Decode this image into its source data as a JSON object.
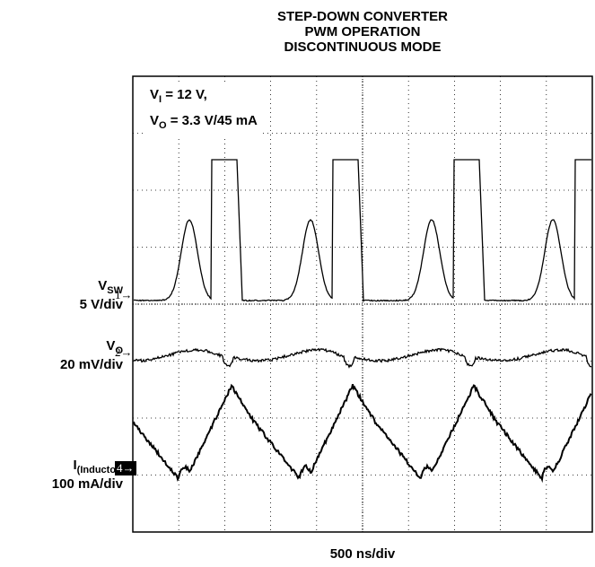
{
  "title_lines": [
    "STEP-DOWN CONVERTER",
    "PWM OPERATION",
    "DISCONTINUOUS MODE"
  ],
  "conditions": {
    "vi_symbol": "V",
    "vi_sub": "I",
    "vi_value": " = 12 V,",
    "vo_symbol": "V",
    "vo_sub": "O",
    "vo_value": " = 3.3 V/45 mA"
  },
  "channels": [
    {
      "symbol": "V",
      "sub": "SW",
      "scale": "5 V/div",
      "marker": "1"
    },
    {
      "symbol": "V",
      "sub": "O",
      "scale": "20 mV/div",
      "marker": "2"
    },
    {
      "symbol": "I",
      "sub": "(Inductor)",
      "scale": "100 mA/div",
      "marker": "4"
    }
  ],
  "time_scale": "500 ns/div",
  "chart_data": {
    "type": "line",
    "title": "STEP-DOWN CONVERTER PWM OPERATION DISCONTINUOUS MODE",
    "xlabel": "500 ns/div",
    "grid": true,
    "x_divisions": 10,
    "y_divisions": 8,
    "series": [
      {
        "name": "V_SW",
        "scale": "5 V/div",
        "note": "switch node: ~12 V pulses, ringing between pulses, 0 V otherwise"
      },
      {
        "name": "V_O",
        "scale": "20 mV/div",
        "note": "output ripple"
      },
      {
        "name": "I(Inductor)",
        "scale": "100 mA/div",
        "note": "triangular inductor current"
      }
    ]
  }
}
